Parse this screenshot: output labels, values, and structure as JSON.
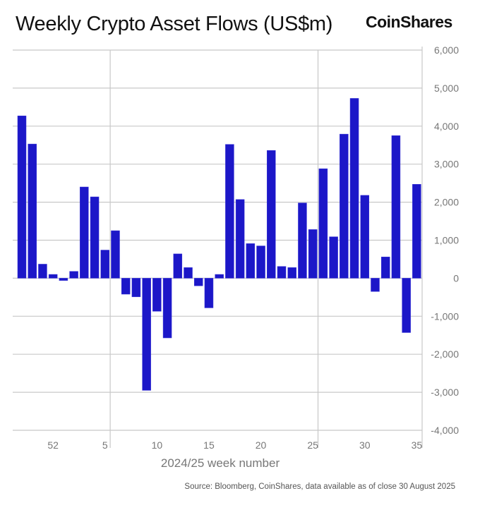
{
  "title": "Weekly Crypto Asset Flows (US$m)",
  "logo": "CoinShares",
  "source": "Source: Bloomberg, CoinShares, data available as of close 30 August 2025",
  "chart_data": {
    "type": "bar",
    "title": "Weekly Crypto Asset Flows (US$m)",
    "xlabel": "2024/25 week number",
    "ylabel": "",
    "ylim": [
      -4000,
      6000
    ],
    "yticks": [
      6000,
      5000,
      4000,
      3000,
      2000,
      1000,
      0,
      -1000,
      -2000,
      -3000,
      -4000
    ],
    "ytick_labels": [
      "6,000",
      "5,000",
      "4,000",
      "3,000",
      "2,000",
      "1,000",
      "0",
      "-1,000",
      "-2,000",
      "-3,000",
      "-4,000"
    ],
    "y_axis_side": "right",
    "xtick_labels": [
      "52",
      "5",
      "10",
      "15",
      "20",
      "25",
      "30",
      "35"
    ],
    "grid": true,
    "bar_color": "#1c17c8",
    "categories": [
      "49",
      "50",
      "51",
      "52",
      "1",
      "2",
      "3",
      "4",
      "5",
      "6",
      "7",
      "8",
      "9",
      "10",
      "11",
      "12",
      "13",
      "14",
      "15",
      "16",
      "17",
      "18",
      "19",
      "20",
      "21",
      "22",
      "23",
      "24",
      "25",
      "26",
      "27",
      "28",
      "29",
      "30",
      "31",
      "32",
      "33",
      "34",
      "35"
    ],
    "values": [
      4270,
      3530,
      370,
      100,
      -60,
      180,
      2400,
      2140,
      740,
      1250,
      -420,
      -490,
      -2950,
      -870,
      -1570,
      640,
      280,
      -200,
      -780,
      100,
      3520,
      2070,
      910,
      850,
      3360,
      310,
      280,
      1980,
      1280,
      2880,
      1090,
      3790,
      4730,
      2180,
      -350,
      560,
      3750,
      -1430,
      2470
    ]
  }
}
